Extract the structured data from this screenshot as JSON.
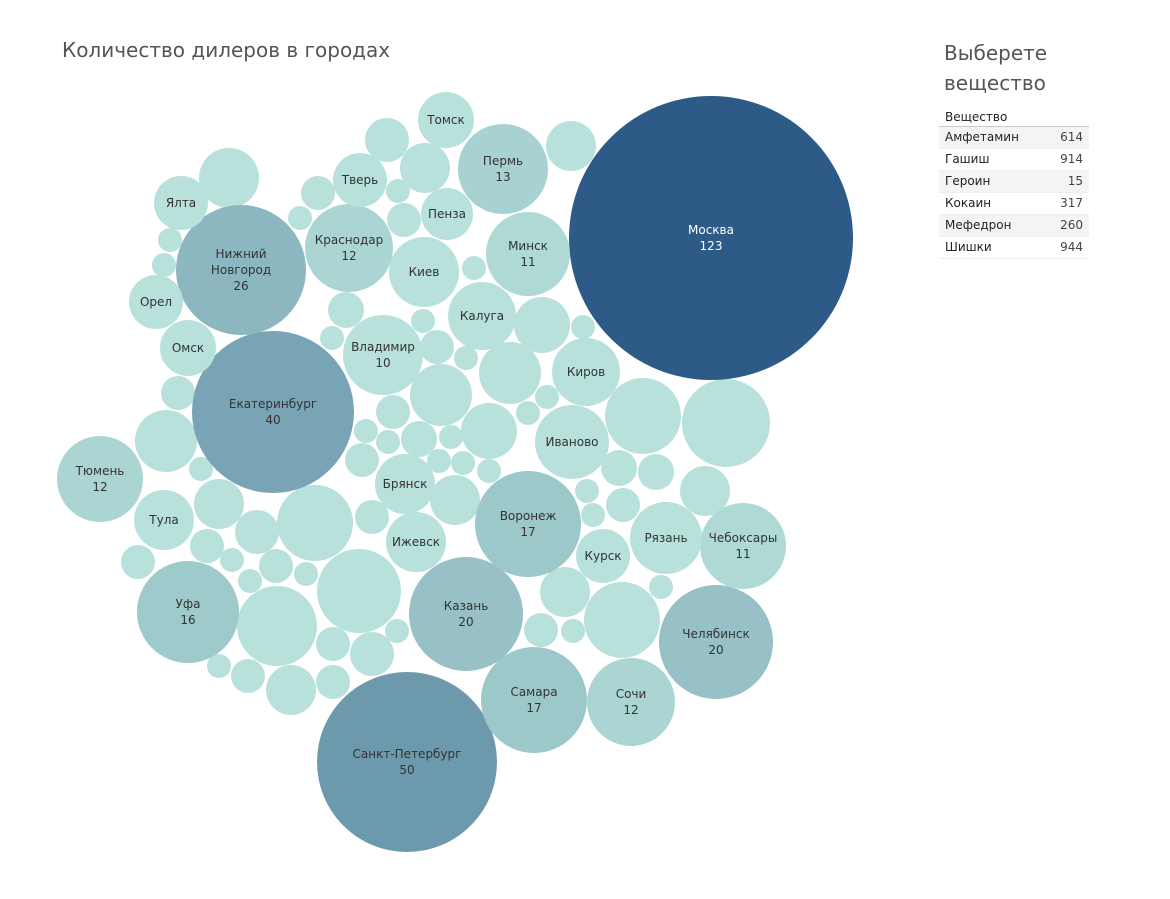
{
  "chart_title": "Количество дилеров в городах",
  "filter_panel": {
    "title_line1": "Выберете",
    "title_line2": "вещество",
    "header": "Вещество",
    "items": [
      {
        "label": "Амфетамин",
        "value": "614"
      },
      {
        "label": "Гашиш",
        "value": "914"
      },
      {
        "label": "Героин",
        "value": "15"
      },
      {
        "label": "Кокаин",
        "value": "317"
      },
      {
        "label": "Мефедрон",
        "value": "260"
      },
      {
        "label": "Шишки",
        "value": "944"
      }
    ]
  },
  "chart_data": {
    "type": "bubble",
    "title": "Количество дилеров в городах",
    "color_scale": [
      "#b7e1da",
      "#2d5a87"
    ],
    "series": [
      {
        "name": "Москва",
        "value": 123
      },
      {
        "name": "Санкт-Петербург",
        "value": 50
      },
      {
        "name": "Екатеринбург",
        "value": 40
      },
      {
        "name": "Нижний Новгород",
        "value": 26
      },
      {
        "name": "Казань",
        "value": 20
      },
      {
        "name": "Челябинск",
        "value": 20
      },
      {
        "name": "Воронеж",
        "value": 17
      },
      {
        "name": "Самара",
        "value": 17
      },
      {
        "name": "Уфа",
        "value": 16
      },
      {
        "name": "Пермь",
        "value": 13
      },
      {
        "name": "Краснодар",
        "value": 12
      },
      {
        "name": "Тюмень",
        "value": 12
      },
      {
        "name": "Сочи",
        "value": 12
      },
      {
        "name": "Минск",
        "value": 11
      },
      {
        "name": "Чебоксары",
        "value": 11
      },
      {
        "name": "Владимир",
        "value": 10
      },
      {
        "name": "Томск",
        "value": null
      },
      {
        "name": "Тверь",
        "value": null
      },
      {
        "name": "Пенза",
        "value": null
      },
      {
        "name": "Ялта",
        "value": null
      },
      {
        "name": "Киев",
        "value": null
      },
      {
        "name": "Калуга",
        "value": null
      },
      {
        "name": "Орел",
        "value": null
      },
      {
        "name": "Омск",
        "value": null
      },
      {
        "name": "Киров",
        "value": null
      },
      {
        "name": "Иваново",
        "value": null
      },
      {
        "name": "Брянск",
        "value": null
      },
      {
        "name": "Тула",
        "value": null
      },
      {
        "name": "Ижевск",
        "value": null
      },
      {
        "name": "Рязань",
        "value": null
      },
      {
        "name": "Курск",
        "value": null
      }
    ]
  }
}
